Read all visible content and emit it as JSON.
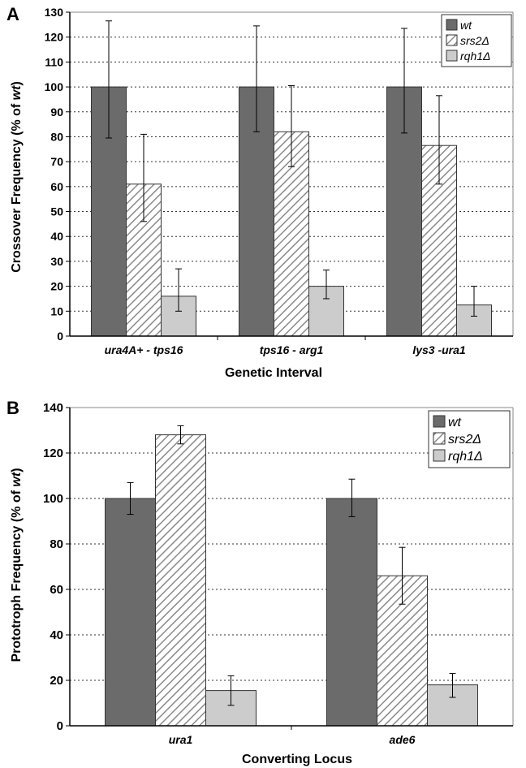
{
  "chart_data": [
    {
      "panel": "A",
      "type": "bar",
      "xlabel": "Genetic Interval",
      "ylabel_prefix": "Crossover Frequency (% of ",
      "ylabel_italic": "wt",
      "ylabel_suffix": ")",
      "ylim": [
        0,
        130
      ],
      "yticks": [
        0,
        10,
        20,
        30,
        40,
        50,
        60,
        70,
        80,
        90,
        100,
        110,
        120,
        130
      ],
      "grid": true,
      "legend_position": "top-right",
      "categories": [
        "ura4A+ - tps16",
        "tps16 - arg1",
        "lys3 -ura1"
      ],
      "series": [
        {
          "name": "wt",
          "fill": "solid",
          "color": "#6b6b6b",
          "values": [
            100,
            100,
            100
          ],
          "err_high": [
            126.5,
            124.5,
            123.5
          ],
          "err_low": [
            79.5,
            82,
            81.5
          ]
        },
        {
          "name": "srs2Δ",
          "fill": "hatch",
          "color": "#ffffff",
          "values": [
            61,
            82,
            76.5
          ],
          "err_high": [
            81,
            100.5,
            96.5
          ],
          "err_low": [
            46,
            68,
            61
          ]
        },
        {
          "name": "rqh1Δ",
          "fill": "solid",
          "color": "#cccccc",
          "values": [
            16,
            20,
            12.5
          ],
          "err_high": [
            27,
            26.5,
            20
          ],
          "err_low": [
            10,
            15,
            8
          ]
        }
      ]
    },
    {
      "panel": "B",
      "type": "bar",
      "xlabel": "Converting Locus",
      "ylabel_prefix": "Prototroph Frequency (% of ",
      "ylabel_italic": "wt",
      "ylabel_suffix": ")",
      "ylim": [
        0,
        140
      ],
      "yticks": [
        0,
        20,
        40,
        60,
        80,
        100,
        120,
        140
      ],
      "grid": true,
      "legend_position": "top-right",
      "categories": [
        "ura1",
        "ade6"
      ],
      "series": [
        {
          "name": "wt",
          "fill": "solid",
          "color": "#6b6b6b",
          "values": [
            100,
            100
          ],
          "err_high": [
            107,
            108.5
          ],
          "err_low": [
            93,
            92
          ]
        },
        {
          "name": "srs2Δ",
          "fill": "hatch",
          "color": "#ffffff",
          "values": [
            128,
            66
          ],
          "err_high": [
            132,
            78.5
          ],
          "err_low": [
            124,
            53.5
          ]
        },
        {
          "name": "rqh1Δ",
          "fill": "solid",
          "color": "#cccccc",
          "values": [
            15.5,
            18
          ],
          "err_high": [
            22,
            23
          ],
          "err_low": [
            9,
            12.5
          ]
        }
      ]
    }
  ]
}
